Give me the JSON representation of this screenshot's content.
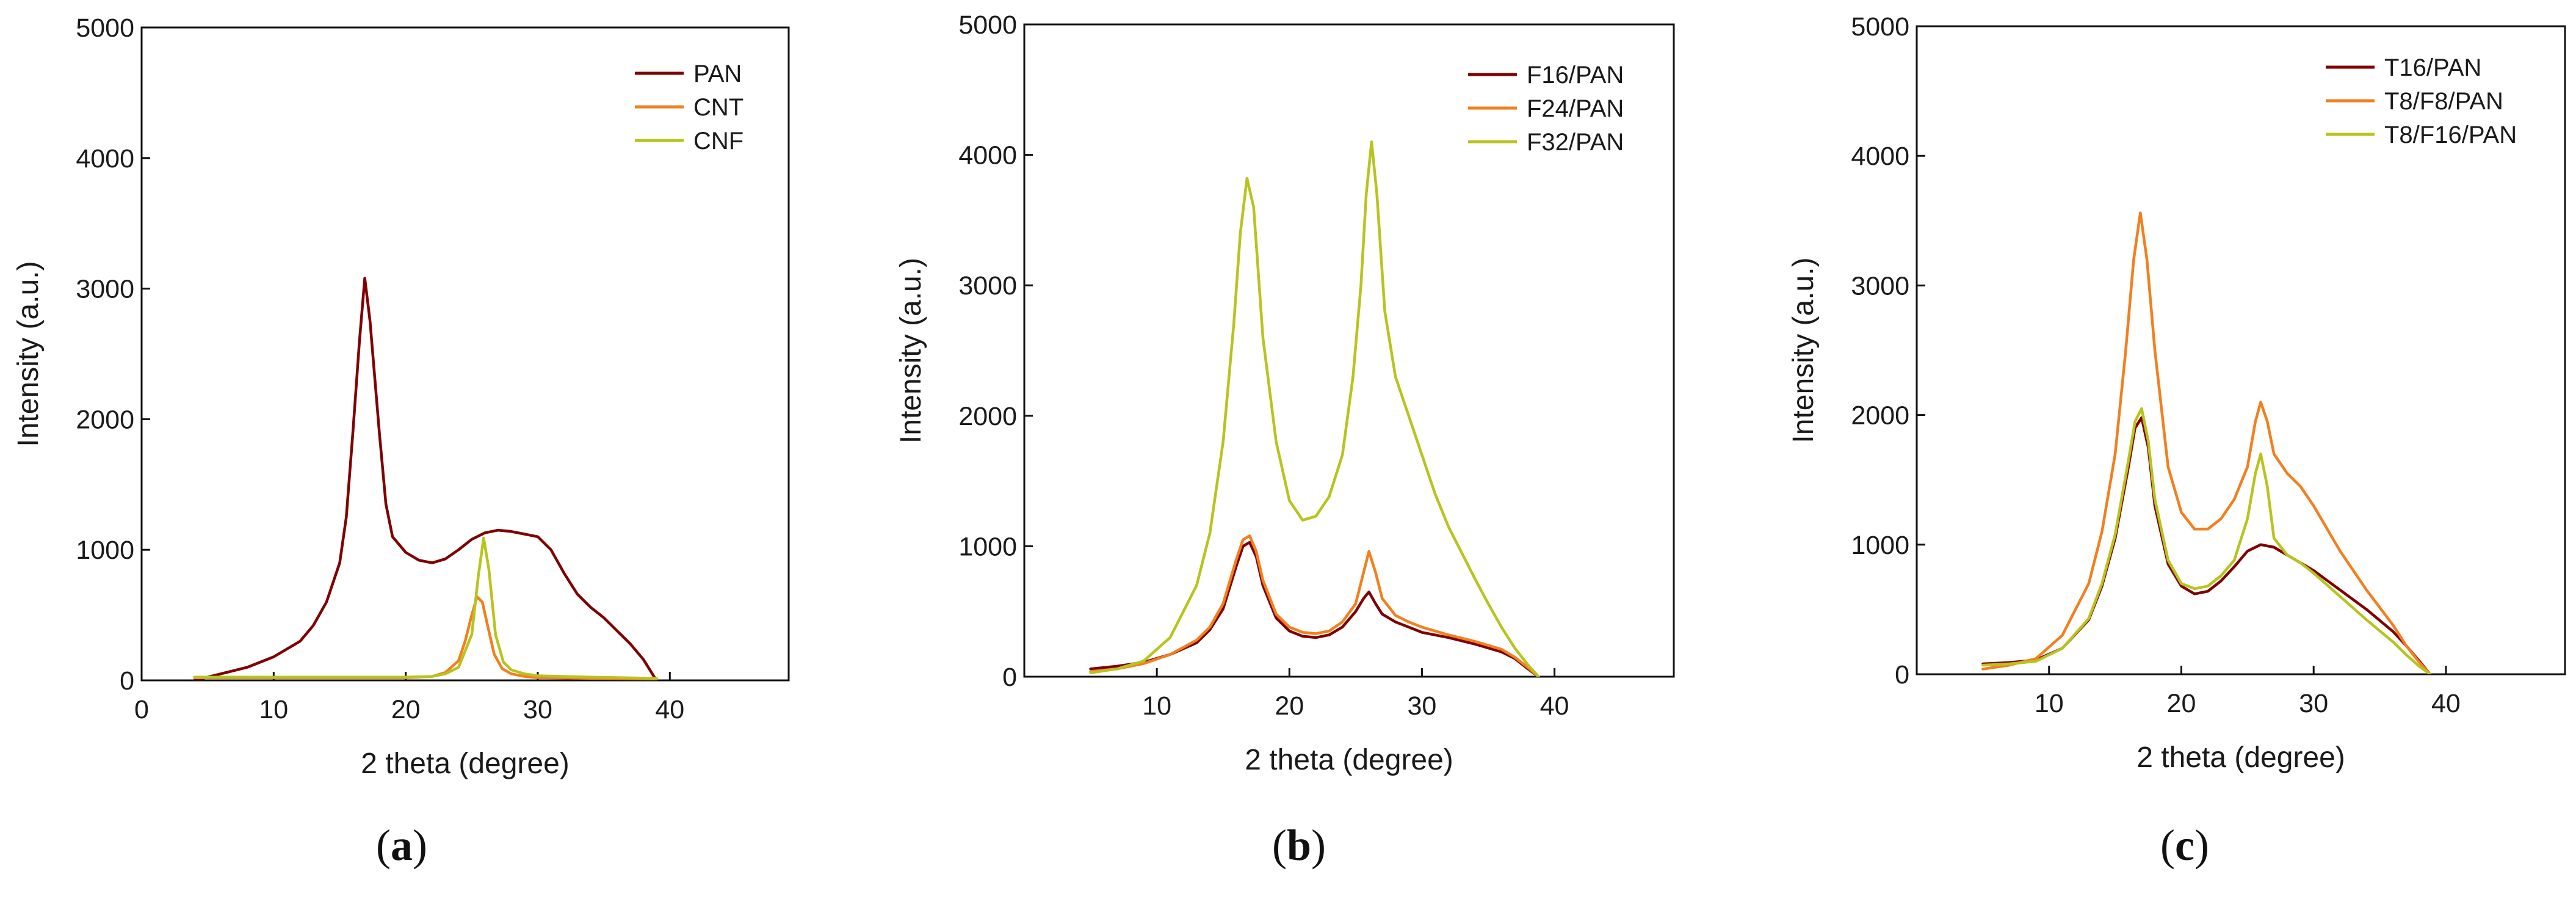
{
  "chart_data": [
    {
      "type": "line",
      "panel_label": {
        "open": "(",
        "letter": "a",
        "close": ")"
      },
      "xlabel": "2 theta (degree)",
      "ylabel": "Intensity (a.u.)",
      "xlim": [
        0,
        49
      ],
      "ylim": [
        0,
        5000
      ],
      "x_ticks": [
        0,
        10,
        20,
        30,
        40
      ],
      "y_ticks": [
        0,
        1000,
        2000,
        3000,
        4000,
        5000
      ],
      "legend_position": "top-right",
      "series": [
        {
          "name": "PAN",
          "color": "#800000",
          "x": [
            4,
            6,
            8,
            10,
            12,
            13,
            14,
            15,
            15.5,
            16,
            16.5,
            16.9,
            17.3,
            18,
            18.5,
            19,
            20,
            21,
            22,
            23,
            24,
            25,
            26,
            27,
            28,
            29,
            30,
            31,
            32,
            33,
            34,
            35,
            36,
            37,
            38,
            38.8,
            39
          ],
          "y": [
            0,
            50,
            100,
            180,
            300,
            420,
            600,
            900,
            1250,
            1900,
            2600,
            3080,
            2750,
            1900,
            1350,
            1100,
            980,
            920,
            900,
            930,
            1000,
            1080,
            1130,
            1150,
            1140,
            1120,
            1100,
            1000,
            820,
            660,
            560,
            480,
            380,
            280,
            160,
            30,
            0
          ]
        },
        {
          "name": "CNT",
          "color": "#f08020",
          "x": [
            4,
            8,
            12,
            16,
            20,
            22,
            23,
            24,
            24.5,
            25,
            25.4,
            25.8,
            26.2,
            26.7,
            27.3,
            28,
            29,
            30,
            34,
            39
          ],
          "y": [
            20,
            20,
            20,
            20,
            20,
            30,
            60,
            150,
            300,
            500,
            640,
            600,
            420,
            200,
            90,
            50,
            30,
            20,
            15,
            10
          ]
        },
        {
          "name": "CNF",
          "color": "#b8c41e",
          "x": [
            4,
            8,
            12,
            16,
            20,
            22,
            23,
            24,
            25,
            25.5,
            25.9,
            26.3,
            26.8,
            27.4,
            28,
            29,
            30,
            34,
            39
          ],
          "y": [
            25,
            25,
            25,
            25,
            25,
            30,
            50,
            100,
            350,
            800,
            1090,
            850,
            350,
            140,
            80,
            50,
            35,
            25,
            15
          ]
        }
      ]
    },
    {
      "type": "line",
      "panel_label": {
        "open": "(",
        "letter": "b",
        "close": ")"
      },
      "xlabel": "2 theta (degree)",
      "ylabel": "Intensity (a.u.)",
      "xlim": [
        0,
        49
      ],
      "ylim": [
        0,
        5000
      ],
      "x_ticks": [
        10,
        20,
        30,
        40
      ],
      "y_ticks": [
        0,
        1000,
        2000,
        3000,
        4000,
        5000
      ],
      "legend_position": "top-right",
      "series": [
        {
          "name": "F16/PAN",
          "color": "#800000",
          "x": [
            5,
            7,
            9,
            11,
            13,
            14,
            15,
            16,
            16.5,
            17,
            17.5,
            18,
            19,
            20,
            21,
            22,
            23,
            24,
            25,
            25.6,
            26,
            26.5,
            27,
            28,
            29,
            30,
            32,
            34,
            36,
            37,
            38,
            38.8
          ],
          "y": [
            60,
            80,
            110,
            170,
            260,
            360,
            520,
            850,
            1000,
            1030,
            920,
            700,
            450,
            350,
            310,
            300,
            320,
            380,
            500,
            600,
            650,
            560,
            480,
            420,
            380,
            340,
            300,
            250,
            190,
            140,
            60,
            0
          ]
        },
        {
          "name": "F24/PAN",
          "color": "#f08020",
          "x": [
            5,
            7,
            9,
            11,
            13,
            14,
            15,
            16,
            16.5,
            17,
            17.5,
            18,
            19,
            20,
            21,
            22,
            23,
            24,
            25,
            25.6,
            26,
            26.5,
            27,
            28,
            29,
            30,
            32,
            34,
            36,
            37,
            38,
            38.8
          ],
          "y": [
            40,
            60,
            100,
            170,
            280,
            380,
            560,
            900,
            1050,
            1080,
            960,
            740,
            480,
            380,
            340,
            330,
            350,
            420,
            560,
            800,
            960,
            800,
            600,
            470,
            420,
            380,
            320,
            270,
            210,
            150,
            70,
            0
          ]
        },
        {
          "name": "F32/PAN",
          "color": "#b8c41e",
          "x": [
            5,
            7,
            9,
            11,
            13,
            14,
            15,
            15.8,
            16.3,
            16.8,
            17.3,
            18,
            19,
            20,
            21,
            22,
            23,
            24,
            24.8,
            25.4,
            25.8,
            26.2,
            26.6,
            27.2,
            28,
            29,
            30,
            31,
            32,
            33,
            34,
            35,
            36,
            37,
            38,
            38.8
          ],
          "y": [
            30,
            60,
            120,
            300,
            700,
            1100,
            1800,
            2700,
            3400,
            3820,
            3600,
            2600,
            1800,
            1350,
            1200,
            1230,
            1380,
            1700,
            2300,
            3000,
            3700,
            4100,
            3700,
            2800,
            2300,
            2000,
            1700,
            1400,
            1150,
            950,
            750,
            560,
            380,
            220,
            90,
            0
          ]
        }
      ]
    },
    {
      "type": "line",
      "panel_label": {
        "open": "(",
        "letter": "c",
        "close": ")"
      },
      "xlabel": "2 theta (degree)",
      "ylabel": "Intensity (a.u.)",
      "xlim": [
        0,
        49
      ],
      "ylim": [
        0,
        5000
      ],
      "x_ticks": [
        10,
        20,
        30,
        40
      ],
      "y_ticks": [
        0,
        1000,
        2000,
        3000,
        4000,
        5000
      ],
      "legend_position": "top-right",
      "series": [
        {
          "name": "T16/PAN",
          "color": "#800000",
          "x": [
            5,
            7,
            9,
            11,
            13,
            14,
            15,
            16,
            16.5,
            17,
            17.5,
            18,
            19,
            20,
            21,
            22,
            23,
            24,
            25,
            26,
            27,
            28,
            29,
            30,
            32,
            34,
            36,
            37,
            38,
            38.8
          ],
          "y": [
            80,
            90,
            110,
            200,
            420,
            680,
            1050,
            1600,
            1900,
            1980,
            1750,
            1300,
            850,
            680,
            620,
            640,
            720,
            830,
            950,
            1000,
            980,
            920,
            860,
            800,
            650,
            500,
            330,
            220,
            100,
            0
          ]
        },
        {
          "name": "T8/F8/PAN",
          "color": "#f08020",
          "x": [
            5,
            7,
            9,
            11,
            13,
            14,
            15,
            15.8,
            16.4,
            16.9,
            17.4,
            18,
            19,
            20,
            21,
            22,
            23,
            24,
            25,
            25.6,
            26,
            26.5,
            27,
            28,
            29,
            30,
            32,
            34,
            36,
            37,
            38,
            38.8
          ],
          "y": [
            40,
            70,
            120,
            300,
            700,
            1100,
            1700,
            2500,
            3200,
            3560,
            3200,
            2500,
            1600,
            1250,
            1120,
            1120,
            1200,
            1350,
            1600,
            1950,
            2100,
            1950,
            1700,
            1550,
            1450,
            1300,
            950,
            650,
            380,
            220,
            90,
            0
          ]
        },
        {
          "name": "T8/F16/PAN",
          "color": "#b8c41e",
          "x": [
            5,
            7,
            9,
            11,
            13,
            14,
            15,
            16,
            16.5,
            17,
            17.5,
            18,
            19,
            20,
            21,
            22,
            23,
            24,
            25,
            25.6,
            26,
            26.5,
            27,
            28,
            29,
            30,
            32,
            34,
            36,
            37,
            38,
            38.8
          ],
          "y": [
            70,
            80,
            100,
            200,
            430,
            700,
            1080,
            1650,
            1950,
            2050,
            1800,
            1350,
            880,
            700,
            660,
            680,
            760,
            880,
            1200,
            1550,
            1700,
            1450,
            1050,
            920,
            860,
            780,
            600,
            420,
            250,
            150,
            60,
            0
          ]
        }
      ]
    }
  ]
}
